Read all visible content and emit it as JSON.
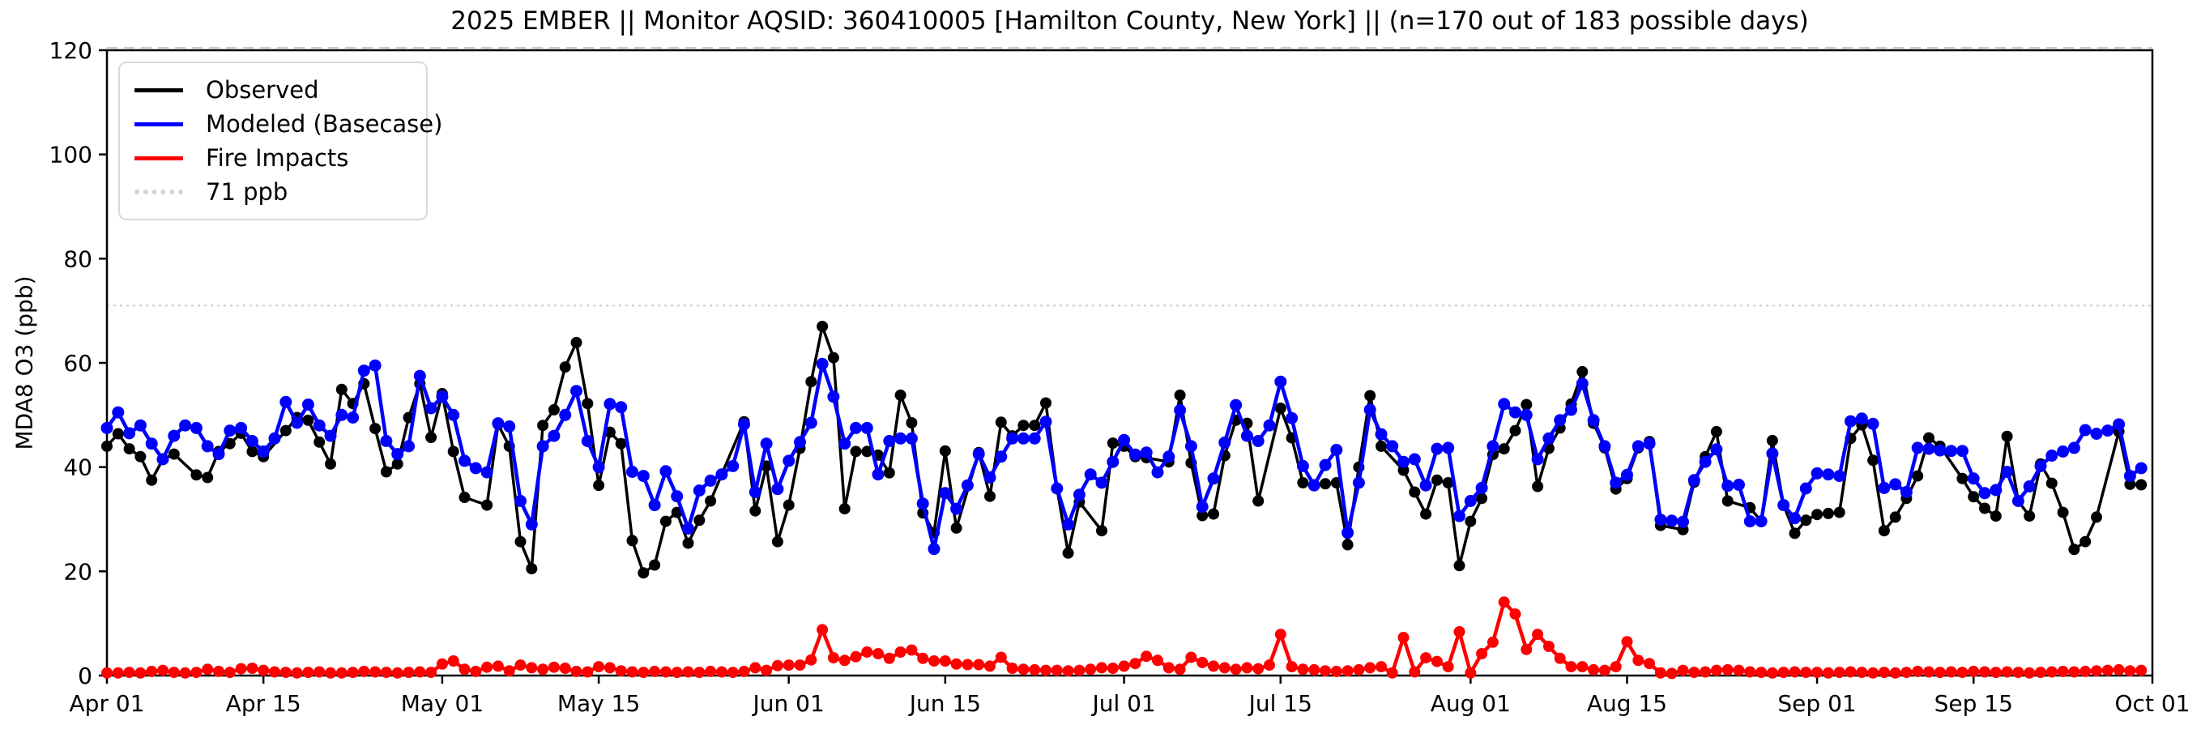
{
  "chart_data": {
    "type": "line",
    "title": "2025 EMBER || Monitor AQSID: 360410005 [Hamilton County, New York] || (n=170 out of 183 possible days)",
    "ylabel": "MDA8 O3 (ppb)",
    "ylim": [
      0,
      120
    ],
    "yticks": [
      0,
      20,
      40,
      60,
      80,
      100,
      120
    ],
    "grid": false,
    "x_axis": {
      "start_label": "Apr 01",
      "end_label": "Oct 01",
      "days_total": 183,
      "ticks": [
        {
          "label": "Apr 01",
          "day": 0
        },
        {
          "label": "Apr 15",
          "day": 14
        },
        {
          "label": "May 01",
          "day": 30
        },
        {
          "label": "May 15",
          "day": 44
        },
        {
          "label": "Jun 01",
          "day": 61
        },
        {
          "label": "Jun 15",
          "day": 75
        },
        {
          "label": "Jul 01",
          "day": 91
        },
        {
          "label": "Jul 15",
          "day": 105
        },
        {
          "label": "Aug 01",
          "day": 122
        },
        {
          "label": "Aug 15",
          "day": 136
        },
        {
          "label": "Sep 01",
          "day": 153
        },
        {
          "label": "Sep 15",
          "day": 167
        },
        {
          "label": "Oct 01",
          "day": 183
        }
      ]
    },
    "ref_line": {
      "label": "71 ppb",
      "value": 71,
      "color": "#d3d3d3",
      "style": "dotted"
    },
    "legend": {
      "position": "upper-left",
      "entries": [
        "Observed",
        "Modeled (Basecase)",
        "Fire Impacts",
        "71 ppb"
      ]
    },
    "series": [
      {
        "name": "Observed",
        "color": "#000000",
        "marker": "circle",
        "n_days": "170 out of 183",
        "values": [
          44.0,
          46.4,
          43.5,
          42.0,
          37.5,
          41.5,
          42.5,
          null,
          38.5,
          38.0,
          43.0,
          44.5,
          46.5,
          43.0,
          42.0,
          null,
          47.0,
          49.5,
          49.0,
          44.8,
          40.6,
          54.9,
          52.2,
          56.0,
          47.4,
          39.1,
          40.6,
          49.5,
          56.0,
          45.7,
          54.1,
          43.0,
          34.2,
          null,
          32.7,
          48.2,
          44.0,
          25.7,
          20.5,
          48.0,
          51.0,
          59.2,
          63.9,
          52.2,
          36.5,
          46.7,
          44.5,
          25.9,
          19.7,
          21.2,
          29.6,
          31.3,
          25.4,
          29.8,
          33.5,
          38.6,
          null,
          48.7,
          31.6,
          40.2,
          25.7,
          32.7,
          43.6,
          56.4,
          67.0,
          61.0,
          32.0,
          43.0,
          43.0,
          42.3,
          38.9,
          53.8,
          48.5,
          31.2,
          27.4,
          43.1,
          28.3,
          null,
          42.8,
          34.4,
          48.6,
          46.0,
          48.0,
          48.0,
          52.3,
          35.9,
          23.5,
          33.3,
          null,
          27.8,
          44.6,
          44.0,
          42.0,
          41.8,
          null,
          41.0,
          53.8,
          40.8,
          30.7,
          31.0,
          42.2,
          49.0,
          48.4,
          33.5,
          null,
          51.3,
          45.6,
          37.0,
          36.6,
          36.8,
          37.0,
          25.1,
          40.0,
          53.7,
          44.0,
          null,
          39.4,
          35.2,
          31.0,
          37.5,
          37.0,
          21.1,
          29.6,
          34.0,
          42.4,
          43.5,
          47.0,
          52.0,
          36.3,
          43.6,
          47.5,
          52.1,
          58.3,
          48.4,
          43.7,
          35.8,
          37.8,
          43.7,
          44.9,
          28.8,
          null,
          28.0,
          37.1,
          42.0,
          46.8,
          33.5,
          null,
          32.2,
          29.6,
          45.1,
          32.7,
          27.3,
          29.8,
          30.9,
          31.1,
          31.3,
          45.5,
          48.1,
          41.3,
          27.8,
          30.4,
          34.0,
          38.3,
          45.6,
          44.0,
          null,
          37.8,
          34.3,
          32.1,
          30.6,
          45.9,
          33.5,
          30.6,
          40.6,
          36.9,
          31.3,
          24.2,
          25.7,
          30.4,
          null,
          46.8,
          36.7,
          36.6
        ]
      },
      {
        "name": "Modeled (Basecase)",
        "color": "#0000ff",
        "marker": "circle",
        "values": [
          47.5,
          50.5,
          46.5,
          48.0,
          44.5,
          41.5,
          46.0,
          48.0,
          47.5,
          44.0,
          42.5,
          47.0,
          47.5,
          45.0,
          43.0,
          45.5,
          52.5,
          48.5,
          52.0,
          48.0,
          46.0,
          50.0,
          49.5,
          58.5,
          59.5,
          45.0,
          42.5,
          44.0,
          57.5,
          51.3,
          53.5,
          50.0,
          41.2,
          39.8,
          39.0,
          48.4,
          47.8,
          33.5,
          29.0,
          44.0,
          46.0,
          50.0,
          54.6,
          45.0,
          40.0,
          52.1,
          51.5,
          39.1,
          38.3,
          32.7,
          39.2,
          34.4,
          28.2,
          35.5,
          37.4,
          38.6,
          40.2,
          48.2,
          35.2,
          44.5,
          35.8,
          41.2,
          44.8,
          48.5,
          59.8,
          53.5,
          44.5,
          47.5,
          47.5,
          38.6,
          45.0,
          45.5,
          45.5,
          33.0,
          24.3,
          35.0,
          32.0,
          36.5,
          42.5,
          38.0,
          42.0,
          45.5,
          45.5,
          45.5,
          48.7,
          35.9,
          29.0,
          34.7,
          38.6,
          37.0,
          41.0,
          45.2,
          42.4,
          42.8,
          39.0,
          42.0,
          50.9,
          44.0,
          32.4,
          37.8,
          44.7,
          51.9,
          46.0,
          45.0,
          48.0,
          56.4,
          49.4,
          40.2,
          36.5,
          40.4,
          43.3,
          27.4,
          37.0,
          51.0,
          46.3,
          44.0,
          41.0,
          41.5,
          36.5,
          43.5,
          43.7,
          30.6,
          33.5,
          36.0,
          44.0,
          52.1,
          50.5,
          50.0,
          41.5,
          45.5,
          49.0,
          51.0,
          56.0,
          49.0,
          44.0,
          37.0,
          38.5,
          44.0,
          44.5,
          29.9,
          29.7,
          29.5,
          37.5,
          41.0,
          43.4,
          36.4,
          36.6,
          29.6,
          29.6,
          42.6,
          32.7,
          30.2,
          35.9,
          38.8,
          38.6,
          38.3,
          48.8,
          49.3,
          48.3,
          36.0,
          36.7,
          35.2,
          43.7,
          43.5,
          43.2,
          43.1,
          43.1,
          37.8,
          35.0,
          35.6,
          39.1,
          33.5,
          36.3,
          40.2,
          42.2,
          43.0,
          43.7,
          47.1,
          46.4,
          47.0,
          48.2,
          38.3,
          39.8
        ]
      },
      {
        "name": "Fire Impacts",
        "color": "#ff0000",
        "marker": "circle",
        "values": [
          0.5,
          0.5,
          0.6,
          0.5,
          0.8,
          1.0,
          0.6,
          0.5,
          0.6,
          1.2,
          0.8,
          0.6,
          1.3,
          1.4,
          1.0,
          0.7,
          0.6,
          0.5,
          0.6,
          0.7,
          0.5,
          0.5,
          0.6,
          0.8,
          0.7,
          0.6,
          0.5,
          0.6,
          0.7,
          0.6,
          2.2,
          2.8,
          1.2,
          0.8,
          1.6,
          1.8,
          0.9,
          2.0,
          1.5,
          1.2,
          1.6,
          1.4,
          0.8,
          0.7,
          1.7,
          1.5,
          0.9,
          0.7,
          0.6,
          0.8,
          0.7,
          0.6,
          0.7,
          0.6,
          0.8,
          0.7,
          0.6,
          0.8,
          1.5,
          1.0,
          1.9,
          2.0,
          2.0,
          3.0,
          8.8,
          3.4,
          2.9,
          3.6,
          4.5,
          4.2,
          3.3,
          4.5,
          4.9,
          3.3,
          2.8,
          2.8,
          2.2,
          2.1,
          2.1,
          1.8,
          3.5,
          1.4,
          1.2,
          1.1,
          1.0,
          1.0,
          0.9,
          1.0,
          1.2,
          1.5,
          1.4,
          1.8,
          2.3,
          3.7,
          2.9,
          1.5,
          1.2,
          3.5,
          2.5,
          1.8,
          1.5,
          1.2,
          1.5,
          1.3,
          2.0,
          7.9,
          1.7,
          1.2,
          1.1,
          0.9,
          0.8,
          0.9,
          1.1,
          1.5,
          1.7,
          0.5,
          7.3,
          0.7,
          3.4,
          2.7,
          1.7,
          8.4,
          0.5,
          4.2,
          6.4,
          14.1,
          11.8,
          5.0,
          7.9,
          5.6,
          3.3,
          1.7,
          1.7,
          1.1,
          1.0,
          1.7,
          6.5,
          2.9,
          2.3,
          0.5,
          0.4,
          1.0,
          0.6,
          0.7,
          1.0,
          1.1,
          1.0,
          0.7,
          0.6,
          0.5,
          0.6,
          0.7,
          0.6,
          0.6,
          0.5,
          0.6,
          0.7,
          0.6,
          0.5,
          0.6,
          0.5,
          0.6,
          0.8,
          0.7,
          0.6,
          0.7,
          0.6,
          0.8,
          0.7,
          0.6,
          0.7,
          0.6,
          0.5,
          0.6,
          0.7,
          0.8,
          0.7,
          0.8,
          0.9,
          1.0,
          1.1,
          0.9,
          1.0
        ]
      }
    ]
  }
}
